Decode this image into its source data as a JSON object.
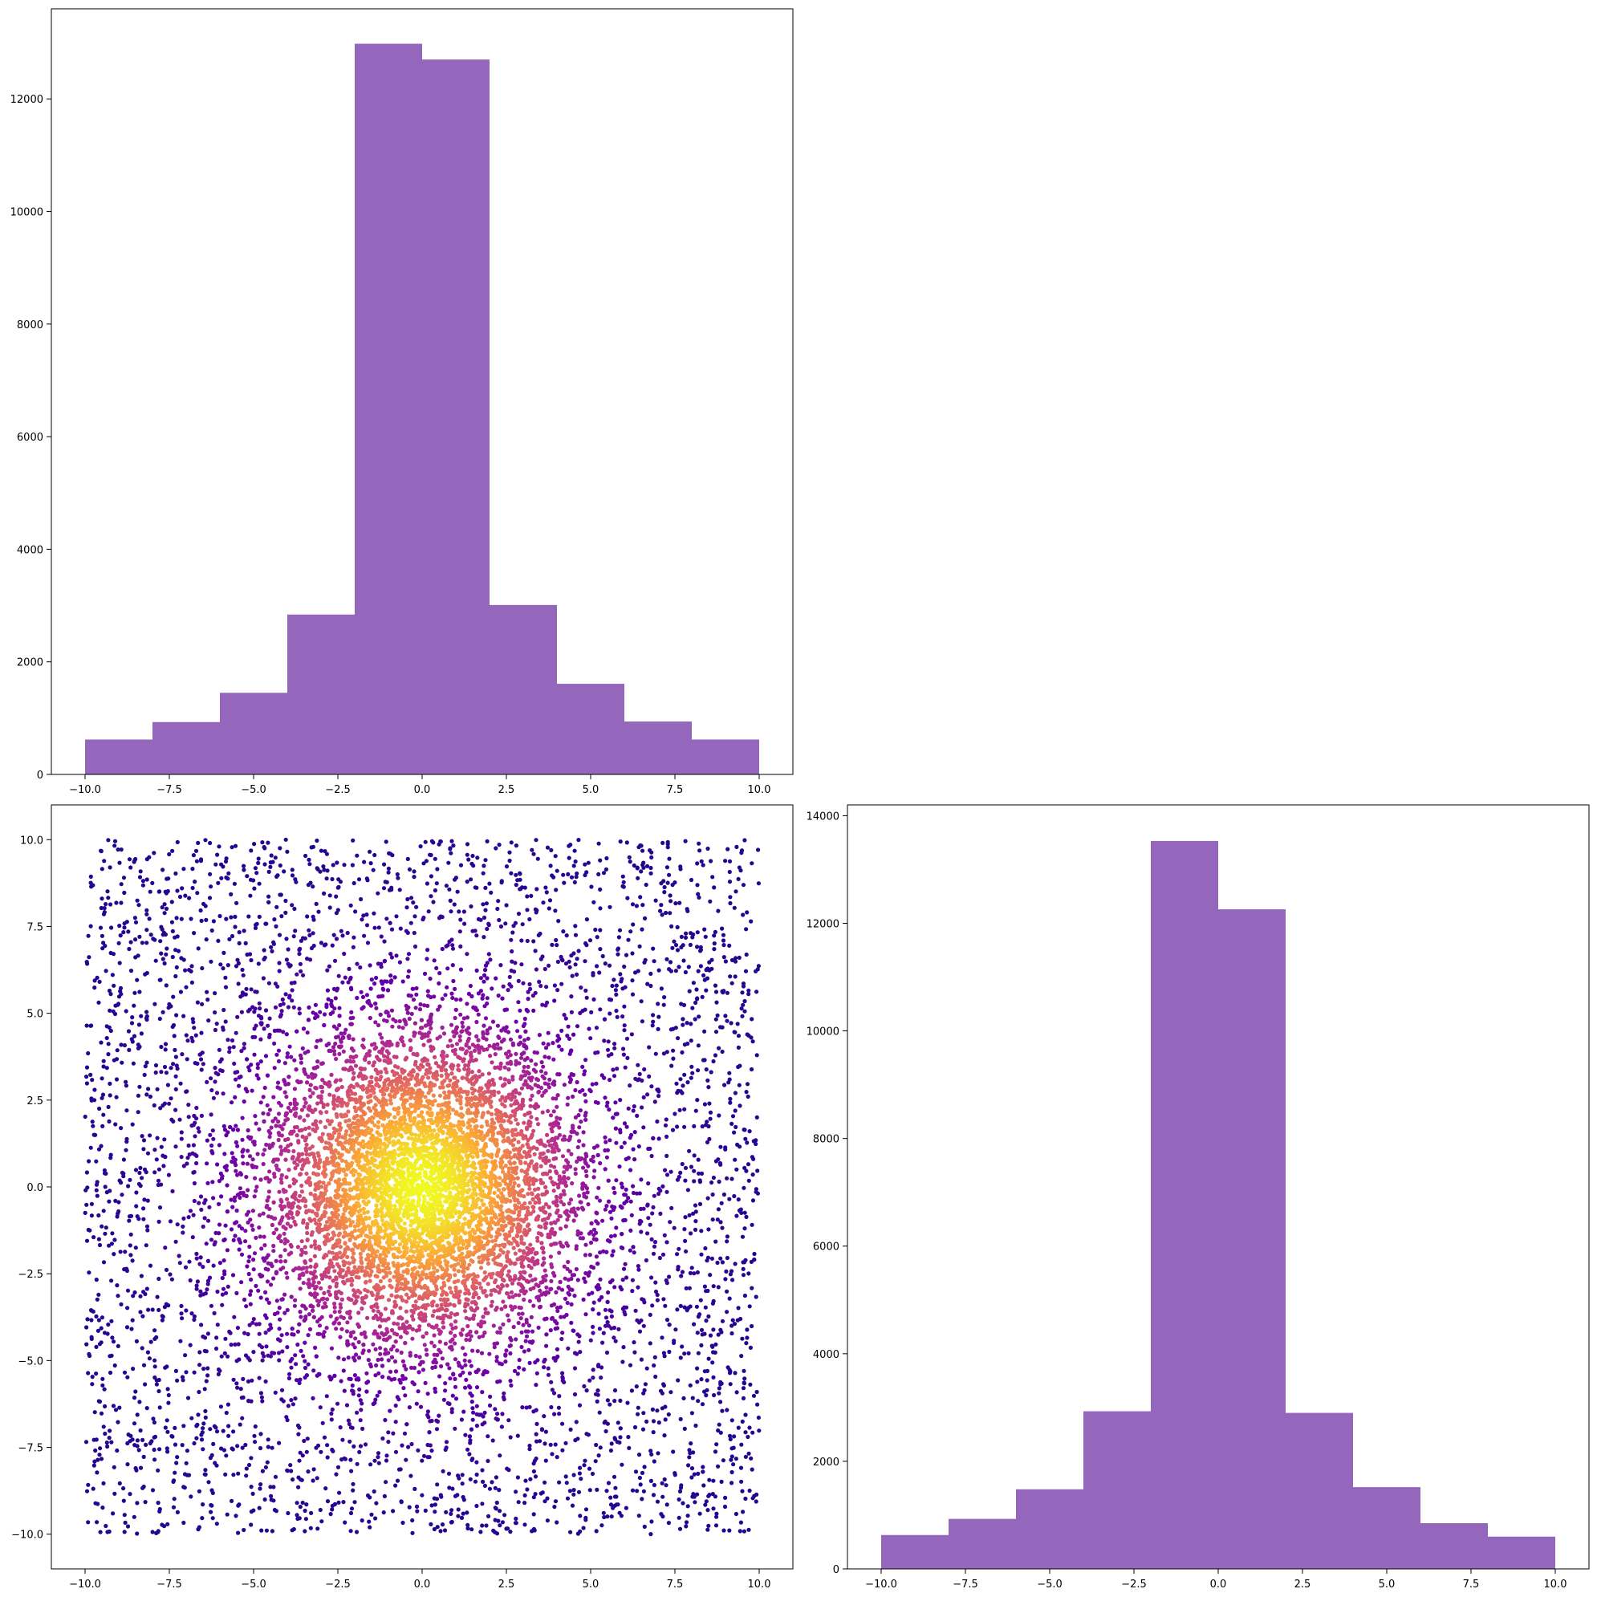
{
  "chart_data": [
    {
      "panel": "top-left",
      "type": "bar",
      "title": "",
      "xlabel": "",
      "ylabel": "",
      "bin_edges": [
        -10,
        -8,
        -6,
        -4,
        -2,
        0,
        2,
        4,
        6,
        8,
        10
      ],
      "values": [
        620,
        930,
        1450,
        2840,
        12980,
        12700,
        3010,
        1610,
        940,
        620
      ],
      "xlim": [
        -11,
        11
      ],
      "ylim": [
        0,
        13600
      ],
      "xticks": [
        -10,
        -7.5,
        -5,
        -2.5,
        0,
        2.5,
        5,
        7.5,
        10
      ],
      "xtick_labels": [
        "−10.0",
        "−7.5",
        "−5.0",
        "−2.5",
        "0.0",
        "2.5",
        "5.0",
        "7.5",
        "10.0"
      ],
      "yticks": [
        0,
        2000,
        4000,
        6000,
        8000,
        10000,
        12000
      ],
      "ytick_labels": [
        "0",
        "2000",
        "4000",
        "6000",
        "8000",
        "10000",
        "12000"
      ],
      "color": "#9467bd",
      "grid": false
    },
    {
      "panel": "bottom-left",
      "type": "scatter",
      "title": "",
      "xlabel": "",
      "ylabel": "",
      "description": "density-colored scatter of points uniformly spread over [-10,10]x[-10,10] with a dense core near the origin",
      "x_range": [
        -10,
        10
      ],
      "y_range": [
        -10,
        10
      ],
      "xlim": [
        -11,
        11
      ],
      "ylim": [
        -11,
        11
      ],
      "xticks": [
        -10,
        -7.5,
        -5,
        -2.5,
        0,
        2.5,
        5,
        7.5,
        10
      ],
      "xtick_labels": [
        "−10.0",
        "−7.5",
        "−5.0",
        "−2.5",
        "0.0",
        "2.5",
        "5.0",
        "7.5",
        "10.0"
      ],
      "yticks": [
        -10,
        -7.5,
        -5,
        -2.5,
        0,
        2.5,
        5,
        7.5,
        10
      ],
      "ytick_labels": [
        "−10.0",
        "−7.5",
        "−5.0",
        "−2.5",
        "0.0",
        "2.5",
        "5.0",
        "7.5",
        "10.0"
      ],
      "colormap": "plasma",
      "colormap_stops": [
        "#0d0887",
        "#6a00a8",
        "#b12a90",
        "#e16462",
        "#fca636",
        "#f0f921"
      ],
      "grid": false
    },
    {
      "panel": "bottom-right",
      "type": "bar",
      "title": "",
      "xlabel": "",
      "ylabel": "",
      "bin_edges": [
        -10,
        -8,
        -6,
        -4,
        -2,
        0,
        2,
        4,
        6,
        8,
        10
      ],
      "values": [
        630,
        930,
        1480,
        2930,
        13530,
        12260,
        2900,
        1520,
        850,
        600
      ],
      "xlim": [
        -11,
        11
      ],
      "ylim": [
        0,
        14200
      ],
      "xticks": [
        -10,
        -7.5,
        -5,
        -2.5,
        0,
        2.5,
        5,
        7.5,
        10
      ],
      "xtick_labels": [
        "−10.0",
        "−7.5",
        "−5.0",
        "−2.5",
        "0.0",
        "2.5",
        "5.0",
        "7.5",
        "10.0"
      ],
      "yticks": [
        0,
        2000,
        4000,
        6000,
        8000,
        10000,
        12000,
        14000
      ],
      "ytick_labels": [
        "0",
        "2000",
        "4000",
        "6000",
        "8000",
        "10000",
        "12000",
        "14000"
      ],
      "color": "#9467bd",
      "grid": false
    }
  ]
}
